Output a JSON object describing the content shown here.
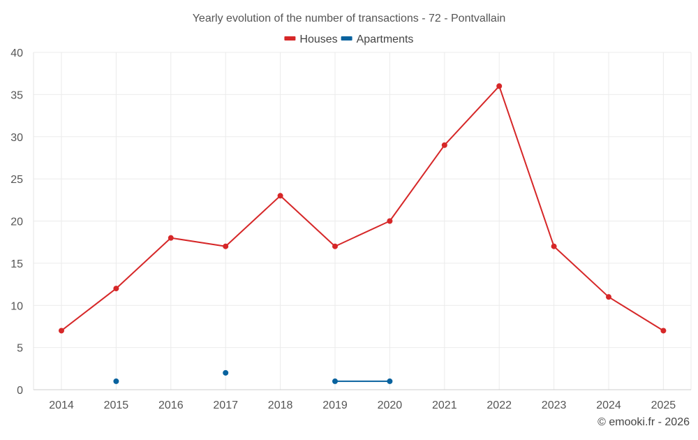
{
  "chart_data": {
    "type": "line",
    "title": "Yearly evolution of the number of transactions - 72 - Pontvallain",
    "xlabel": "",
    "ylabel": "",
    "categories": [
      "2014",
      "2015",
      "2016",
      "2017",
      "2018",
      "2019",
      "2020",
      "2021",
      "2022",
      "2023",
      "2024",
      "2025"
    ],
    "ylim": [
      0,
      40
    ],
    "yticks": [
      0,
      5,
      10,
      15,
      20,
      25,
      30,
      35,
      40
    ],
    "grid": true,
    "legend_position": "top-center",
    "series": [
      {
        "name": "Houses",
        "color": "#d62728",
        "values": [
          7,
          12,
          18,
          17,
          23,
          17,
          20,
          29,
          36,
          17,
          11,
          7
        ]
      },
      {
        "name": "Apartments",
        "color": "#08629e",
        "values": [
          null,
          1,
          null,
          2,
          null,
          1,
          1,
          null,
          null,
          null,
          null,
          null
        ]
      }
    ],
    "credit": "© emooki.fr - 2026"
  }
}
